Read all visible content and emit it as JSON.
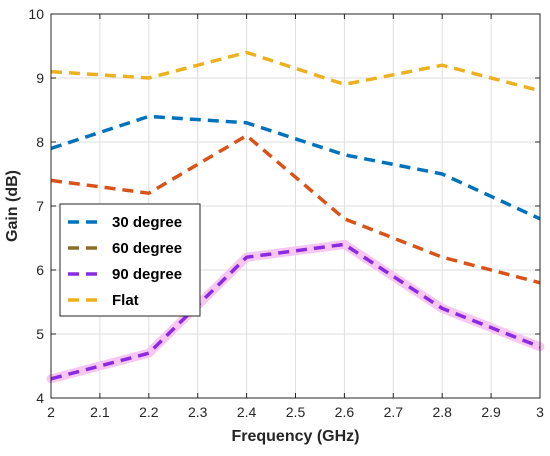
{
  "chart_data": {
    "type": "line",
    "title": "",
    "xlabel": "Frequency (GHz)",
    "ylabel": "Gain (dB)",
    "xlim": [
      2,
      3
    ],
    "ylim": [
      4,
      10
    ],
    "xticks": [
      "2",
      "2.1",
      "2.2",
      "2.3",
      "2.4",
      "2.5",
      "2.6",
      "2.7",
      "2.8",
      "2.9",
      "3"
    ],
    "yticks": [
      "4",
      "5",
      "6",
      "7",
      "8",
      "9",
      "10"
    ],
    "grid": true,
    "legend_position": "left-middle",
    "legend": [
      "30 degree",
      "60 degree",
      "90 degree",
      "Flat"
    ],
    "series": [
      {
        "name": "30 degree",
        "color": "#0072BD",
        "style": "dashed",
        "x": [
          2,
          2.2,
          2.4,
          2.6,
          2.8,
          3
        ],
        "y": [
          7.9,
          8.4,
          8.3,
          7.8,
          7.5,
          6.8
        ]
      },
      {
        "name": "60 degree",
        "color": "#D95319",
        "legend_color": "#8C6B2A",
        "style": "dashed",
        "x": [
          2,
          2.2,
          2.4,
          2.6,
          2.8,
          3
        ],
        "y": [
          7.4,
          7.2,
          8.1,
          6.8,
          6.2,
          5.8
        ]
      },
      {
        "name": "90 degree",
        "color": "#8A2BE2",
        "glow": "#F7C6F2",
        "style": "dashed",
        "x": [
          2,
          2.2,
          2.4,
          2.6,
          2.8,
          3
        ],
        "y": [
          4.3,
          4.7,
          6.2,
          6.4,
          5.4,
          4.8
        ]
      },
      {
        "name": "Flat",
        "color": "#EDB120",
        "style": "dashed",
        "x": [
          2,
          2.2,
          2.4,
          2.6,
          2.8,
          3
        ],
        "y": [
          9.1,
          9.0,
          9.4,
          8.9,
          9.2,
          8.8
        ]
      }
    ]
  }
}
